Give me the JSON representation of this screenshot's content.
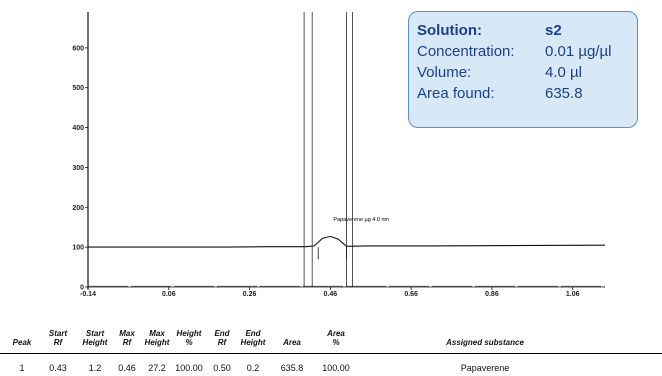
{
  "info_box": {
    "solution_label": "Solution:",
    "solution_value": "s2",
    "concentration_label": "Concentration:",
    "concentration_value": "0.01 µg/µl",
    "volume_label": "Volume:",
    "volume_value": "4.0 µl",
    "area_label": "Area found:",
    "area_value": "635.8"
  },
  "chart_data": {
    "type": "line",
    "title": "",
    "xlabel": "",
    "ylabel": "",
    "xlim": [
      -0.14,
      1.14
    ],
    "ylim": [
      0,
      690
    ],
    "x_ticks": [
      "-0.14",
      "0.06",
      "0.26",
      "0.46",
      "0.66",
      "0.86",
      "1.06"
    ],
    "y_ticks": [
      "0",
      "100",
      "200",
      "300",
      "400",
      "500",
      "600"
    ],
    "series": [
      {
        "x": [
          -0.14,
          0.2,
          0.3,
          0.4,
          0.42,
          0.43,
          0.44,
          0.46,
          0.48,
          0.5,
          0.55,
          0.7,
          0.9,
          1.14
        ],
        "y": [
          100,
          100,
          101,
          101,
          103,
          112,
          122,
          127,
          120,
          102,
          103,
          103,
          104,
          105
        ]
      }
    ],
    "baseline_y": 2,
    "peak_label": "Papaverene µg 4.0 nm",
    "peak_label_x": 0.46,
    "vertical_lines_x": [
      0.395,
      0.415,
      0.5,
      0.515
    ],
    "peak_start_rf": 0.43,
    "peak_end_rf": 0.5
  },
  "table": {
    "headers": [
      [
        "Peak"
      ],
      [
        "Start",
        "Rf"
      ],
      [
        "Start",
        "Height"
      ],
      [
        "Max",
        "Rf"
      ],
      [
        "Max",
        "Height"
      ],
      [
        "Height",
        "%"
      ],
      [
        "End",
        "Rf"
      ],
      [
        "End",
        "Height"
      ],
      [
        "Area"
      ],
      [
        "Area",
        "%"
      ],
      [
        "Assigned substance"
      ]
    ],
    "rows": [
      [
        "1",
        "0.43",
        "1.2",
        "0.46",
        "27.2",
        "100.00",
        "0.50",
        "0.2",
        "635.8",
        "100.00",
        "Papaverene"
      ]
    ]
  }
}
